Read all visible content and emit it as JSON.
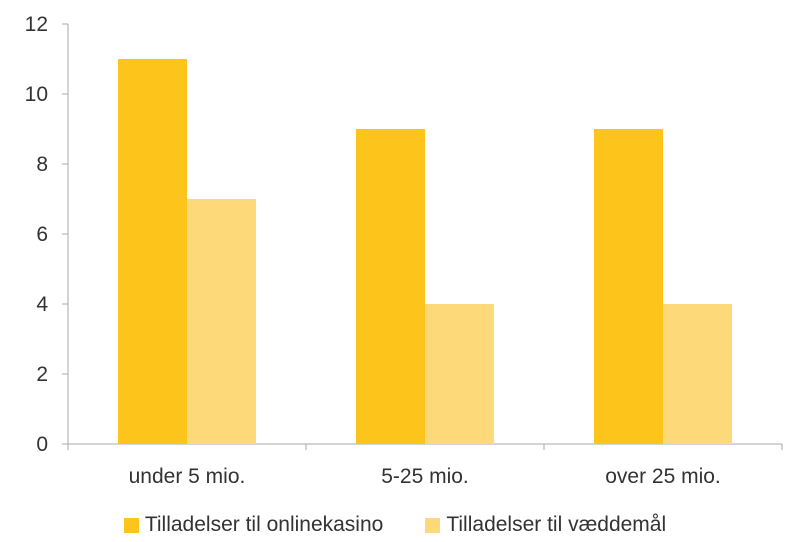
{
  "chart_data": {
    "type": "bar",
    "categories": [
      "under 5 mio.",
      "5-25 mio.",
      "over 25 mio."
    ],
    "series": [
      {
        "name": "Tilladelser til onlinekasino",
        "values": [
          11,
          9,
          9
        ],
        "color": "#FDC41B"
      },
      {
        "name": "Tilladelser til væddemål",
        "values": [
          7,
          4,
          4
        ],
        "color": "#FDD97A"
      }
    ],
    "ylim": [
      0,
      12
    ],
    "yticks": [
      0,
      2,
      4,
      6,
      8,
      10,
      12
    ],
    "ytick_labels": [
      "0",
      "2",
      "4",
      "6",
      "8",
      "10",
      "12"
    ],
    "axis_color": "#AAAAAA",
    "grid": false,
    "legend_position": "bottom"
  }
}
